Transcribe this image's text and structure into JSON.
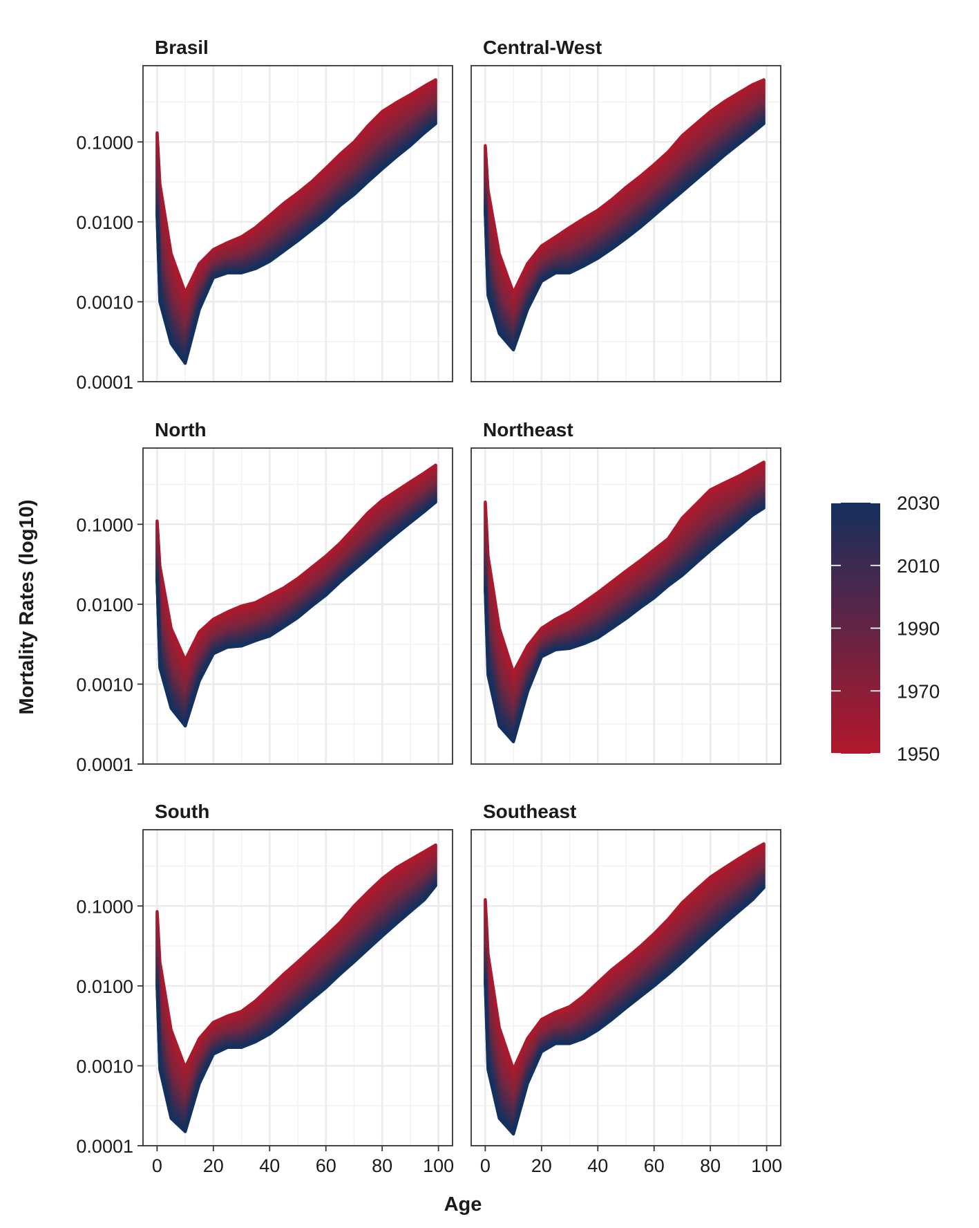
{
  "chart_data": {
    "type": "line",
    "title": "",
    "xlabel": "Age",
    "ylabel": "Mortality Rates (log10)",
    "y_scale": "log10",
    "xlim": [
      -5,
      105
    ],
    "ylim": [
      0.0001,
      0.9
    ],
    "x_ticks": [
      "0",
      "20",
      "40",
      "60",
      "80",
      "100"
    ],
    "y_ticks": [
      "0.0001",
      "0.0010",
      "0.0100",
      "0.1000"
    ],
    "grid": true,
    "legend": {
      "position": "right",
      "type": "colorbar",
      "years": [
        "2030",
        "2010",
        "1990",
        "1970",
        "1950"
      ],
      "low_year": 1950,
      "high_year": 2030,
      "low_color": "#b2182b",
      "high_color": "#14305e"
    },
    "series_years": [
      1950,
      2030
    ],
    "panels": [
      {
        "name": "Brasil",
        "series": [
          {
            "name": "1950",
            "x": [
              0,
              1,
              5,
              10,
              15,
              20,
              25,
              30,
              35,
              40,
              45,
              50,
              55,
              60,
              65,
              70,
              75,
              80,
              85,
              90,
              95,
              99
            ],
            "y": [
              0.13,
              0.03,
              0.004,
              0.0013,
              0.003,
              0.0045,
              0.0055,
              0.0065,
              0.0085,
              0.012,
              0.017,
              0.023,
              0.032,
              0.047,
              0.07,
              0.1,
              0.16,
              0.24,
              0.31,
              0.39,
              0.5,
              0.6
            ]
          },
          {
            "name": "2030",
            "x": [
              0,
              1,
              5,
              10,
              15,
              20,
              25,
              30,
              35,
              40,
              45,
              50,
              55,
              60,
              65,
              70,
              75,
              80,
              85,
              90,
              95,
              99
            ],
            "y": [
              0.012,
              0.001,
              0.0003,
              0.00017,
              0.0008,
              0.002,
              0.0023,
              0.0023,
              0.0026,
              0.0032,
              0.0043,
              0.0058,
              0.008,
              0.011,
              0.016,
              0.022,
              0.032,
              0.046,
              0.065,
              0.09,
              0.13,
              0.17
            ]
          }
        ]
      },
      {
        "name": "Central-West",
        "series": [
          {
            "name": "1950",
            "x": [
              0,
              1,
              5,
              10,
              15,
              20,
              25,
              30,
              35,
              40,
              45,
              50,
              55,
              60,
              65,
              70,
              75,
              80,
              85,
              90,
              95,
              99
            ],
            "y": [
              0.09,
              0.025,
              0.004,
              0.0013,
              0.003,
              0.005,
              0.0065,
              0.0085,
              0.011,
              0.014,
              0.019,
              0.027,
              0.037,
              0.052,
              0.075,
              0.12,
              0.17,
              0.24,
              0.32,
              0.41,
              0.52,
              0.6
            ]
          },
          {
            "name": "2030",
            "x": [
              0,
              1,
              5,
              10,
              15,
              20,
              25,
              30,
              35,
              40,
              45,
              50,
              55,
              60,
              65,
              70,
              75,
              80,
              85,
              90,
              95,
              99
            ],
            "y": [
              0.013,
              0.0012,
              0.0004,
              0.00025,
              0.0008,
              0.0018,
              0.0023,
              0.0023,
              0.0028,
              0.0035,
              0.0046,
              0.0062,
              0.0085,
              0.012,
              0.017,
              0.024,
              0.034,
              0.048,
              0.068,
              0.094,
              0.13,
              0.17
            ]
          }
        ]
      },
      {
        "name": "North",
        "series": [
          {
            "name": "1950",
            "x": [
              0,
              1,
              5,
              10,
              15,
              20,
              25,
              30,
              35,
              40,
              45,
              50,
              55,
              60,
              65,
              70,
              75,
              80,
              85,
              90,
              95,
              99
            ],
            "y": [
              0.11,
              0.03,
              0.005,
              0.002,
              0.0045,
              0.0065,
              0.008,
              0.0095,
              0.0105,
              0.013,
              0.016,
              0.021,
              0.029,
              0.04,
              0.058,
              0.09,
              0.14,
              0.2,
              0.26,
              0.34,
              0.44,
              0.55
            ]
          },
          {
            "name": "2030",
            "x": [
              0,
              1,
              5,
              10,
              15,
              20,
              25,
              30,
              35,
              40,
              45,
              50,
              55,
              60,
              65,
              70,
              75,
              80,
              85,
              90,
              95,
              99
            ],
            "y": [
              0.02,
              0.0016,
              0.0005,
              0.0003,
              0.0011,
              0.0024,
              0.0029,
              0.003,
              0.0035,
              0.004,
              0.0052,
              0.0068,
              0.0095,
              0.013,
              0.019,
              0.027,
              0.038,
              0.054,
              0.076,
              0.105,
              0.145,
              0.19
            ]
          }
        ]
      },
      {
        "name": "Northeast",
        "series": [
          {
            "name": "1950",
            "x": [
              0,
              1,
              5,
              10,
              15,
              20,
              25,
              30,
              35,
              40,
              45,
              50,
              55,
              60,
              65,
              70,
              75,
              80,
              85,
              90,
              95,
              99
            ],
            "y": [
              0.19,
              0.04,
              0.005,
              0.0014,
              0.003,
              0.005,
              0.0065,
              0.008,
              0.0105,
              0.014,
              0.019,
              0.026,
              0.035,
              0.048,
              0.066,
              0.12,
              0.18,
              0.27,
              0.33,
              0.4,
              0.5,
              0.6
            ]
          },
          {
            "name": "2030",
            "x": [
              0,
              1,
              5,
              10,
              15,
              20,
              25,
              30,
              35,
              40,
              45,
              50,
              55,
              60,
              65,
              70,
              75,
              80,
              85,
              90,
              95,
              99
            ],
            "y": [
              0.015,
              0.0013,
              0.0003,
              0.00019,
              0.0008,
              0.0022,
              0.0027,
              0.0028,
              0.0032,
              0.0038,
              0.005,
              0.0066,
              0.009,
              0.012,
              0.017,
              0.023,
              0.033,
              0.047,
              0.066,
              0.092,
              0.13,
              0.16
            ]
          }
        ]
      },
      {
        "name": "South",
        "series": [
          {
            "name": "1950",
            "x": [
              0,
              1,
              5,
              10,
              15,
              20,
              25,
              30,
              35,
              40,
              45,
              50,
              55,
              60,
              65,
              70,
              75,
              80,
              85,
              90,
              95,
              99
            ],
            "y": [
              0.085,
              0.02,
              0.0028,
              0.00095,
              0.0022,
              0.0035,
              0.0042,
              0.0048,
              0.0065,
              0.0095,
              0.014,
              0.02,
              0.029,
              0.042,
              0.062,
              0.1,
              0.15,
              0.22,
              0.3,
              0.38,
              0.48,
              0.58
            ]
          },
          {
            "name": "2030",
            "x": [
              0,
              1,
              5,
              10,
              15,
              20,
              25,
              30,
              35,
              40,
              45,
              50,
              55,
              60,
              65,
              70,
              75,
              80,
              85,
              90,
              95,
              99
            ],
            "y": [
              0.01,
              0.0009,
              0.00022,
              0.00015,
              0.0006,
              0.0014,
              0.0017,
              0.0017,
              0.002,
              0.0025,
              0.0034,
              0.0048,
              0.0068,
              0.0095,
              0.014,
              0.02,
              0.029,
              0.042,
              0.06,
              0.085,
              0.12,
              0.18
            ]
          }
        ]
      },
      {
        "name": "Southeast",
        "series": [
          {
            "name": "1950",
            "x": [
              0,
              1,
              5,
              10,
              15,
              20,
              25,
              30,
              35,
              40,
              45,
              50,
              55,
              60,
              65,
              70,
              75,
              80,
              85,
              90,
              95,
              99
            ],
            "y": [
              0.12,
              0.025,
              0.003,
              0.0009,
              0.0022,
              0.0038,
              0.0047,
              0.0055,
              0.0075,
              0.011,
              0.016,
              0.022,
              0.031,
              0.045,
              0.068,
              0.11,
              0.16,
              0.23,
              0.3,
              0.39,
              0.5,
              0.6
            ]
          },
          {
            "name": "2030",
            "x": [
              0,
              1,
              5,
              10,
              15,
              20,
              25,
              30,
              35,
              40,
              45,
              50,
              55,
              60,
              65,
              70,
              75,
              80,
              85,
              90,
              95,
              99
            ],
            "y": [
              0.011,
              0.0009,
              0.00022,
              0.00014,
              0.0006,
              0.0015,
              0.0019,
              0.0019,
              0.0022,
              0.0028,
              0.0038,
              0.0053,
              0.0073,
              0.01,
              0.014,
              0.02,
              0.029,
              0.042,
              0.06,
              0.085,
              0.12,
              0.17
            ]
          }
        ]
      }
    ]
  }
}
